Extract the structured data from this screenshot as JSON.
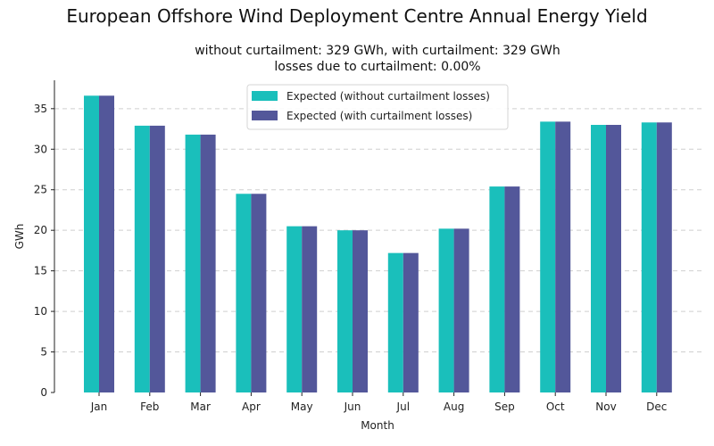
{
  "chart_data": {
    "type": "bar",
    "title": "European Offshore Wind Deployment Centre Annual Energy Yield",
    "subtitle_line1": "without curtailment: 329 GWh, with curtailment: 329 GWh",
    "subtitle_line2": "losses due to curtailment: 0.00%",
    "xlabel": "Month",
    "ylabel": "GWh",
    "ylim": [
      0,
      38.5
    ],
    "yticks": [
      0,
      5,
      10,
      15,
      20,
      25,
      30,
      35
    ],
    "grid": "y-dashed",
    "legend_placement": "top-center",
    "categories": [
      "Jan",
      "Feb",
      "Mar",
      "Apr",
      "May",
      "Jun",
      "Jul",
      "Aug",
      "Sep",
      "Oct",
      "Nov",
      "Dec"
    ],
    "series": [
      {
        "name": "Expected (without curtailment losses)",
        "color": "#1abfbb",
        "values": [
          36.6,
          32.9,
          31.8,
          24.5,
          20.5,
          20.0,
          17.2,
          20.2,
          25.4,
          33.4,
          33.0,
          33.3
        ]
      },
      {
        "name": "Expected (with curtailment losses)",
        "color": "#53579a",
        "values": [
          36.6,
          32.9,
          31.8,
          24.5,
          20.5,
          20.0,
          17.2,
          20.2,
          25.4,
          33.4,
          33.0,
          33.3
        ]
      }
    ]
  }
}
